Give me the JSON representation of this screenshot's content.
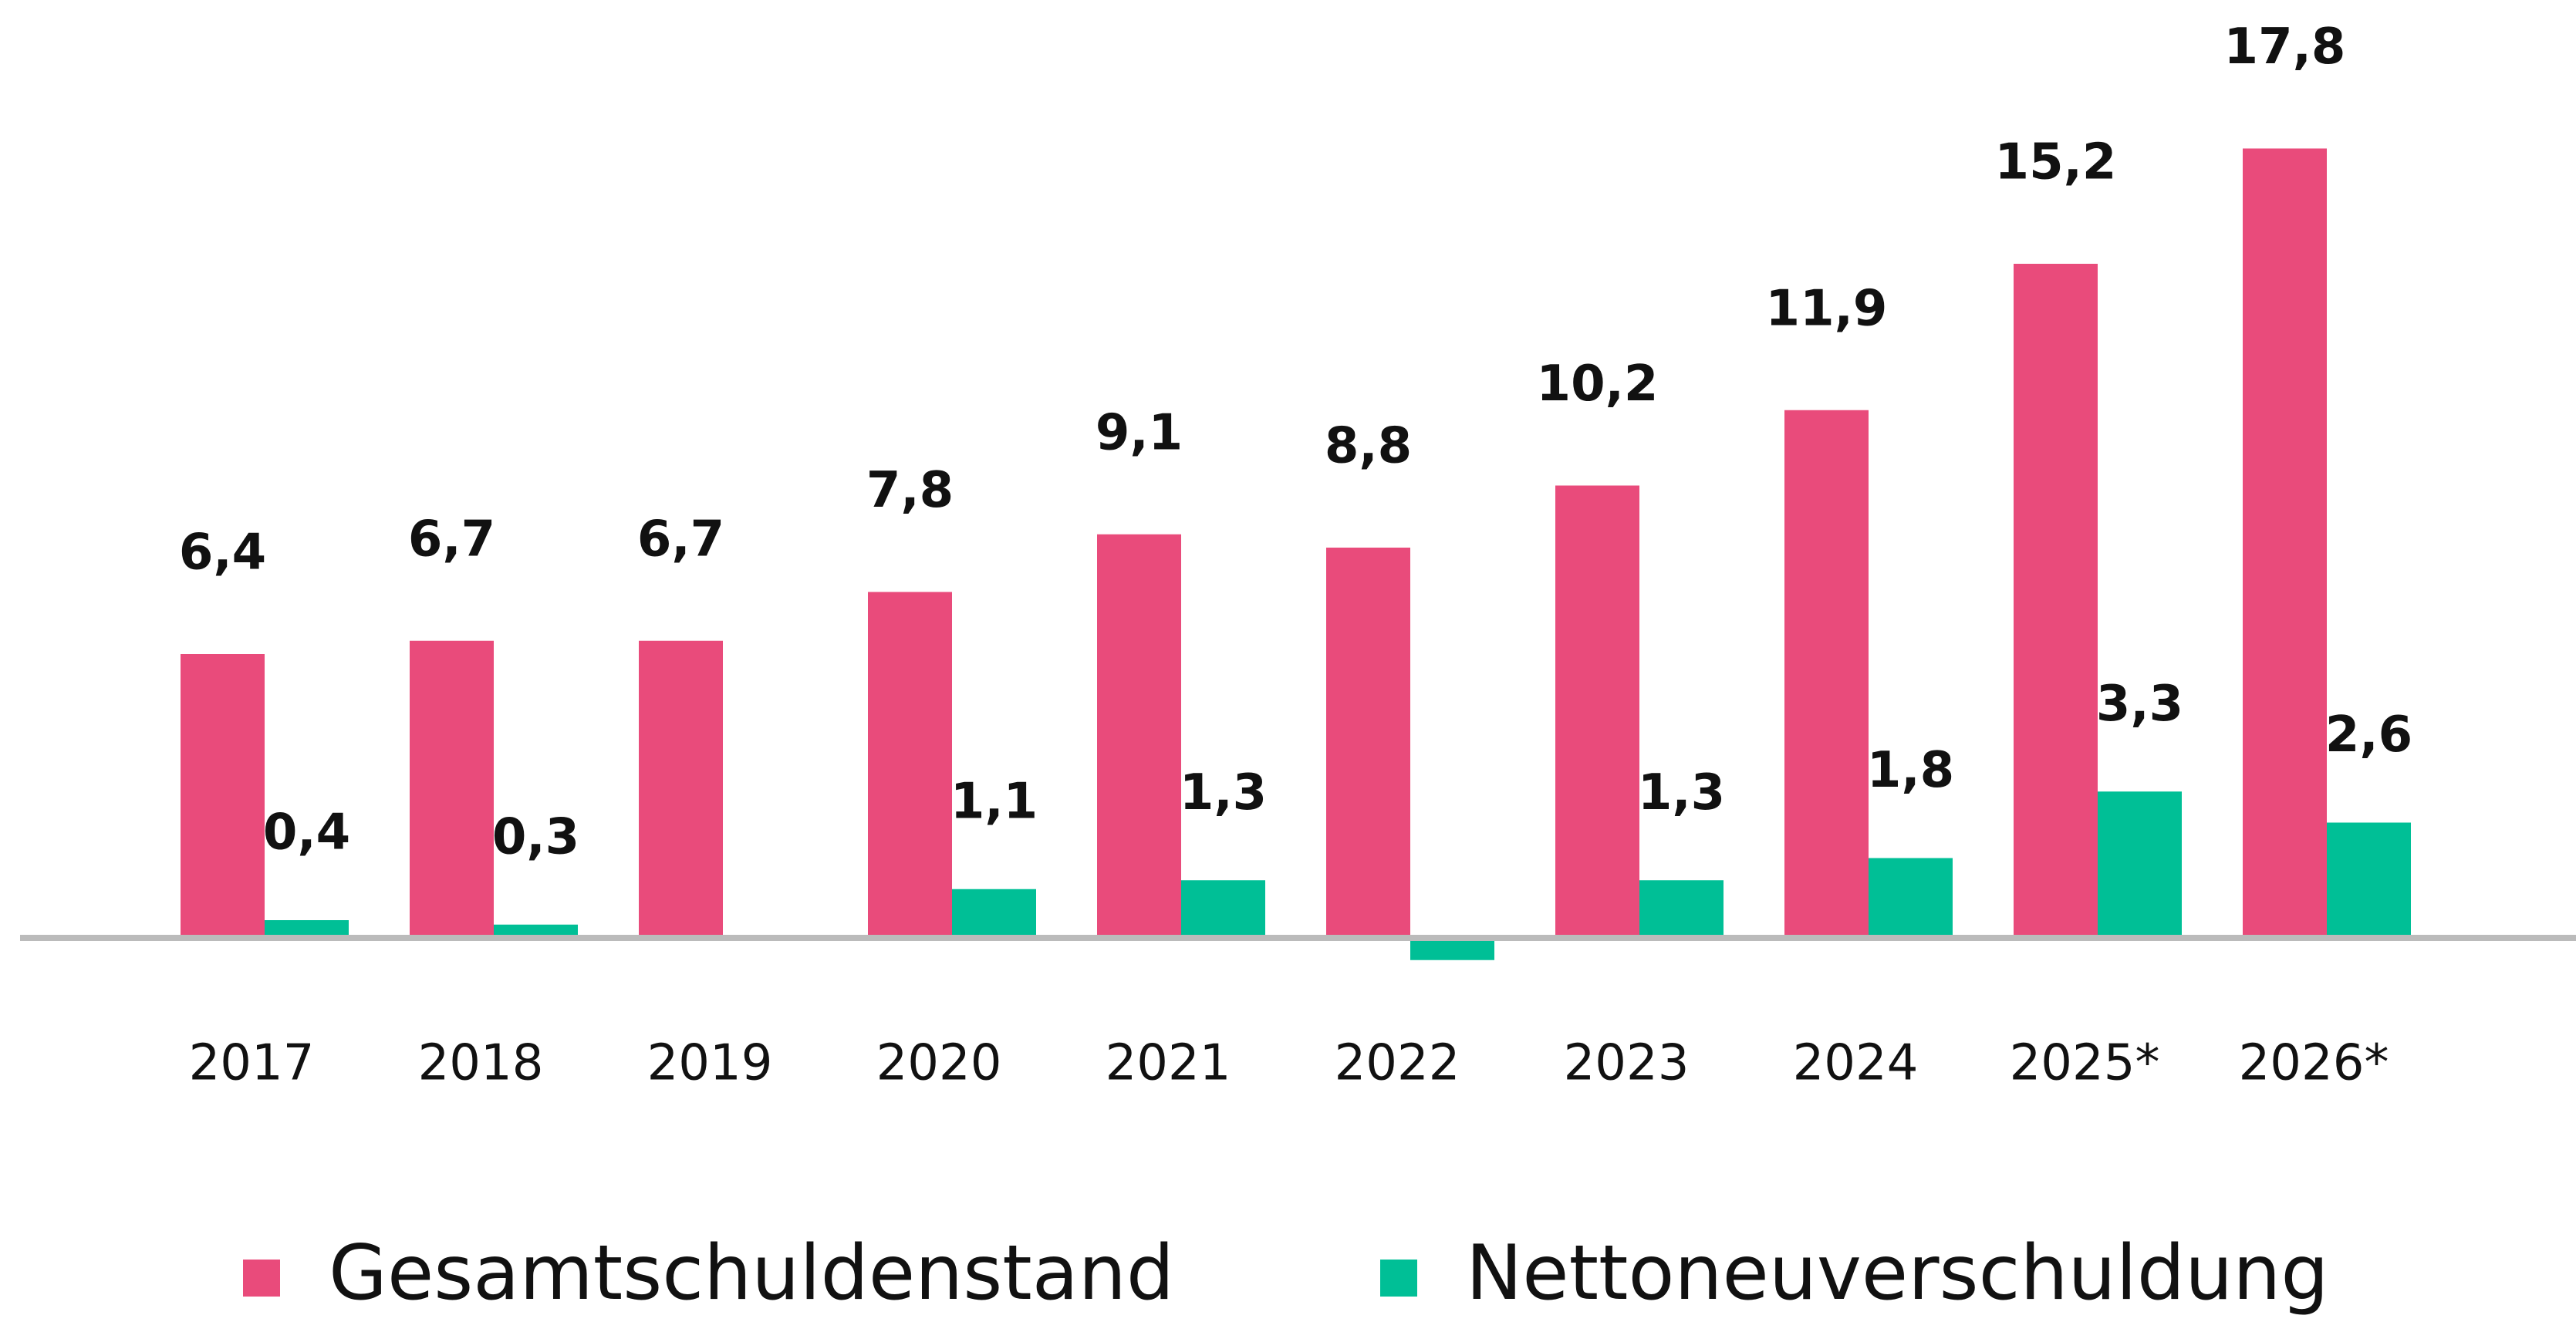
{
  "chart_data": {
    "type": "bar",
    "categories": [
      "2017",
      "2018",
      "2019",
      "2020",
      "2021",
      "2022",
      "2023",
      "2024",
      "2025*",
      "2026*"
    ],
    "series": [
      {
        "name": "Gesamtschuldenstand",
        "color": "#e94b7b",
        "values": [
          6.4,
          6.7,
          6.7,
          7.8,
          9.1,
          8.8,
          10.2,
          11.9,
          15.2,
          17.8
        ],
        "value_labels": [
          "6,4",
          "6,7",
          "6,7",
          "7,8",
          "9,1",
          "8,8",
          "10,2",
          "11,9",
          "15,2",
          "17,8"
        ]
      },
      {
        "name": "Nettoneuverschuldung",
        "color": "#00bf96",
        "values": [
          0.4,
          0.3,
          null,
          1.1,
          1.3,
          -0.5,
          1.3,
          1.8,
          3.3,
          2.6
        ],
        "value_labels": [
          "0,4",
          "0,3",
          null,
          "1,1",
          "1,3",
          null,
          "1,3",
          "1,8",
          "3,3",
          "2,6"
        ]
      }
    ],
    "ylim": [
      -2,
      20
    ]
  }
}
